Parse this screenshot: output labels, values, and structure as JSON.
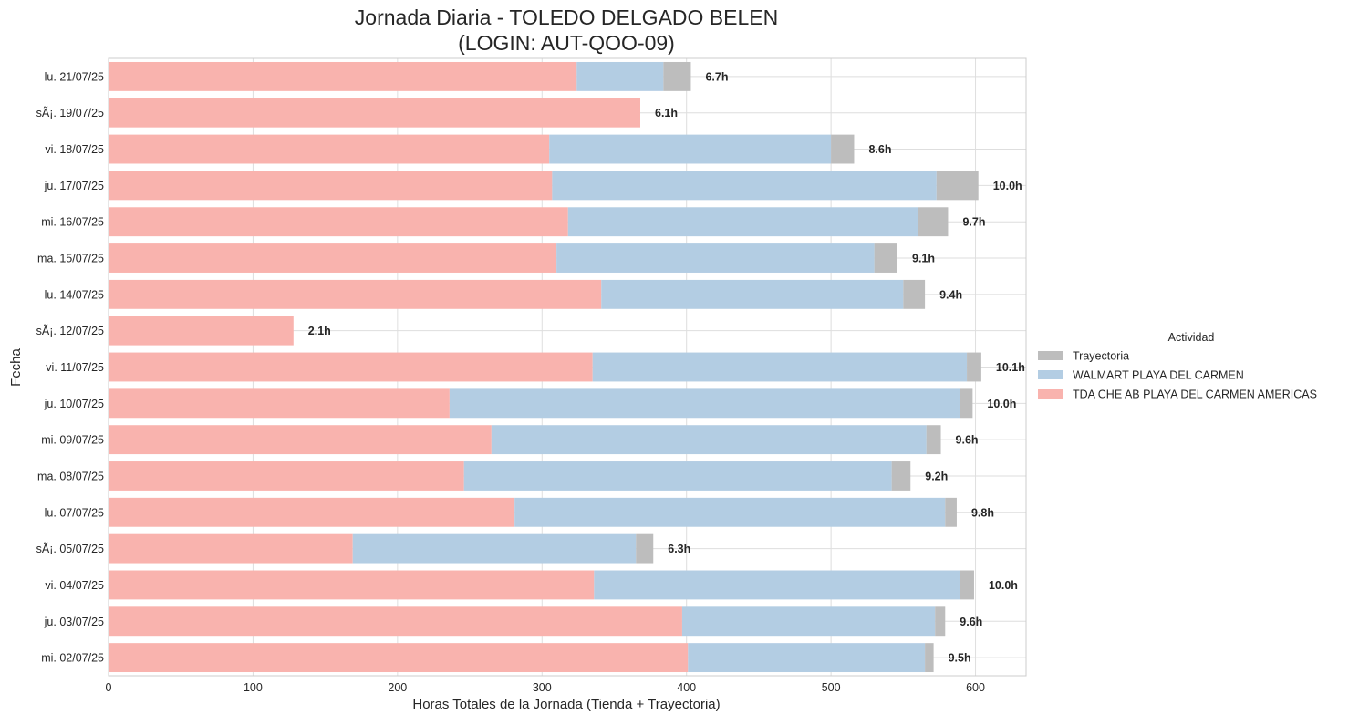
{
  "chart_data": {
    "type": "bar",
    "orientation": "horizontal",
    "stacked": true,
    "title": [
      "Jornada Diaria - TOLEDO DELGADO BELEN",
      "(LOGIN: AUT-QOO-09)"
    ],
    "xlabel": "Horas Totales de la Jornada (Tienda + Trayectoria)",
    "ylabel": "Fecha",
    "xlim": [
      0,
      635
    ],
    "xticks": [
      0,
      100,
      200,
      300,
      400,
      500,
      600
    ],
    "grid": true,
    "legend": {
      "title": "Actividad",
      "placement": "right",
      "entries": [
        "Trayectoria",
        "WALMART PLAYA DEL CARMEN",
        "TDA CHE AB PLAYA DEL CARMEN AMERICAS"
      ]
    },
    "categories": [
      "lu. 21/07/25",
      "sÃ¡. 19/07/25",
      "vi. 18/07/25",
      "ju. 17/07/25",
      "mi. 16/07/25",
      "ma. 15/07/25",
      "lu. 14/07/25",
      "sÃ¡. 12/07/25",
      "vi. 11/07/25",
      "ju. 10/07/25",
      "mi. 09/07/25",
      "ma. 08/07/25",
      "lu. 07/07/25",
      "sÃ¡. 05/07/25",
      "vi. 04/07/25",
      "ju. 03/07/25",
      "mi. 02/07/25"
    ],
    "series": [
      {
        "name": "TDA CHE AB PLAYA DEL CARMEN AMERICAS",
        "color": "#f9b3ae",
        "values": [
          324,
          368,
          305,
          307,
          318,
          310,
          341,
          128,
          335,
          236,
          265,
          246,
          281,
          169,
          336,
          397,
          401
        ]
      },
      {
        "name": "WALMART PLAYA DEL CARMEN",
        "color": "#b3cde3",
        "values": [
          60,
          0,
          195,
          266,
          242,
          220,
          209,
          0,
          259,
          353,
          301,
          296,
          298,
          196,
          253,
          175,
          164
        ]
      },
      {
        "name": "Trayectoria",
        "color": "#bdbdbd",
        "values": [
          19,
          0,
          16,
          29,
          21,
          16,
          15,
          0,
          10,
          9,
          10,
          13,
          8,
          12,
          10,
          7,
          6
        ]
      }
    ],
    "totals": [
      "6.7h",
      "6.1h",
      "8.6h",
      "10.0h",
      "9.7h",
      "9.1h",
      "9.4h",
      "2.1h",
      "10.1h",
      "10.0h",
      "9.6h",
      "9.2h",
      "9.8h",
      "6.3h",
      "10.0h",
      "9.6h",
      "9.5h"
    ]
  }
}
